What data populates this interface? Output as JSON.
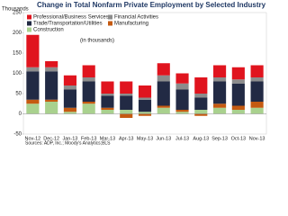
{
  "chart_data": {
    "type": "bar",
    "stacked": true,
    "title": "Change in Total Nonfarm Private Employment by Selected Industry",
    "y_label": "Thousands",
    "annotation": "(in thousands)",
    "source": "Sources: ADP, Inc.; Moody's Analytics;BLS",
    "categories": [
      "Nov-12",
      "Dec-12",
      "Jan-13",
      "Feb-13",
      "Mar-13",
      "Apr-13",
      "May-13",
      "Jun-13",
      "Jul-13",
      "Aug-13",
      "Sep-13",
      "Oct-13",
      "Nov-13"
    ],
    "series": [
      {
        "name": "Construction",
        "color": "#a9d18e",
        "values": [
          25,
          30,
          5,
          25,
          10,
          10,
          5,
          15,
          5,
          10,
          15,
          10,
          15
        ]
      },
      {
        "name": "Manufacturing",
        "color": "#c55a11",
        "values": [
          10,
          5,
          10,
          5,
          5,
          -10,
          -5,
          5,
          5,
          -5,
          10,
          10,
          15
        ]
      },
      {
        "name": "Trade/Transportation/Utilities",
        "color": "#222a44",
        "values": [
          70,
          70,
          45,
          50,
          30,
          35,
          30,
          60,
          50,
          30,
          55,
          55,
          50
        ]
      },
      {
        "name": "Financial Activities",
        "color": "#8c8c8c",
        "values": [
          10,
          10,
          10,
          10,
          5,
          5,
          5,
          15,
          15,
          10,
          10,
          10,
          10
        ]
      },
      {
        "name": "Professional/Business Services",
        "color": "#e0141e",
        "values": [
          80,
          15,
          25,
          30,
          30,
          30,
          30,
          30,
          25,
          40,
          30,
          30,
          30
        ]
      }
    ],
    "ylim": [
      -50,
      250
    ],
    "yticks": [
      -50,
      0,
      50,
      100,
      150,
      200,
      250
    ],
    "grid": false
  }
}
